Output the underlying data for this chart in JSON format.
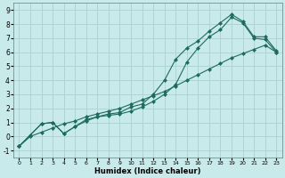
{
  "xlabel": "Humidex (Indice chaleur)",
  "background_color": "#c8eaea",
  "grid_color": "#aed4d4",
  "line_color": "#1e6b5e",
  "xlim": [
    -0.5,
    23.5
  ],
  "ylim": [
    -1.5,
    9.5
  ],
  "xticks": [
    0,
    1,
    2,
    3,
    4,
    5,
    6,
    7,
    8,
    9,
    10,
    11,
    12,
    13,
    14,
    15,
    16,
    17,
    18,
    19,
    20,
    21,
    22,
    23
  ],
  "yticks": [
    -1,
    0,
    1,
    2,
    3,
    4,
    5,
    6,
    7,
    8,
    9
  ],
  "line1_x": [
    0,
    1,
    2,
    3,
    4,
    5,
    6,
    7,
    8,
    9,
    10,
    11,
    12,
    13,
    14,
    15,
    16,
    17,
    18,
    19,
    20,
    21,
    22,
    23
  ],
  "line1_y": [
    -0.7,
    0.0,
    0.3,
    0.6,
    0.9,
    1.1,
    1.4,
    1.6,
    1.8,
    2.0,
    2.3,
    2.6,
    2.9,
    3.2,
    3.6,
    4.0,
    4.4,
    4.8,
    5.2,
    5.6,
    5.9,
    6.2,
    6.5,
    6.0
  ],
  "line2_x": [
    0,
    1,
    2,
    3,
    4,
    5,
    6,
    7,
    8,
    9,
    10,
    11,
    12,
    13,
    14,
    15,
    16,
    17,
    18,
    19,
    20,
    21,
    22,
    23
  ],
  "line2_y": [
    -0.7,
    0.1,
    0.9,
    1.0,
    0.2,
    0.7,
    1.1,
    1.4,
    1.5,
    1.6,
    1.8,
    2.1,
    2.5,
    3.0,
    3.7,
    5.3,
    6.3,
    7.1,
    7.6,
    8.5,
    8.1,
    7.0,
    6.9,
    6.0
  ],
  "line3_x": [
    0,
    2,
    3,
    4,
    5,
    6,
    7,
    8,
    9,
    10,
    11,
    12,
    13,
    14,
    15,
    16,
    17,
    18,
    19,
    20,
    21,
    22,
    23
  ],
  "line3_y": [
    -0.7,
    0.9,
    1.0,
    0.2,
    0.7,
    1.2,
    1.4,
    1.6,
    1.7,
    2.1,
    2.3,
    3.0,
    4.0,
    5.5,
    6.3,
    6.8,
    7.5,
    8.1,
    8.7,
    8.2,
    7.1,
    7.1,
    6.1
  ]
}
